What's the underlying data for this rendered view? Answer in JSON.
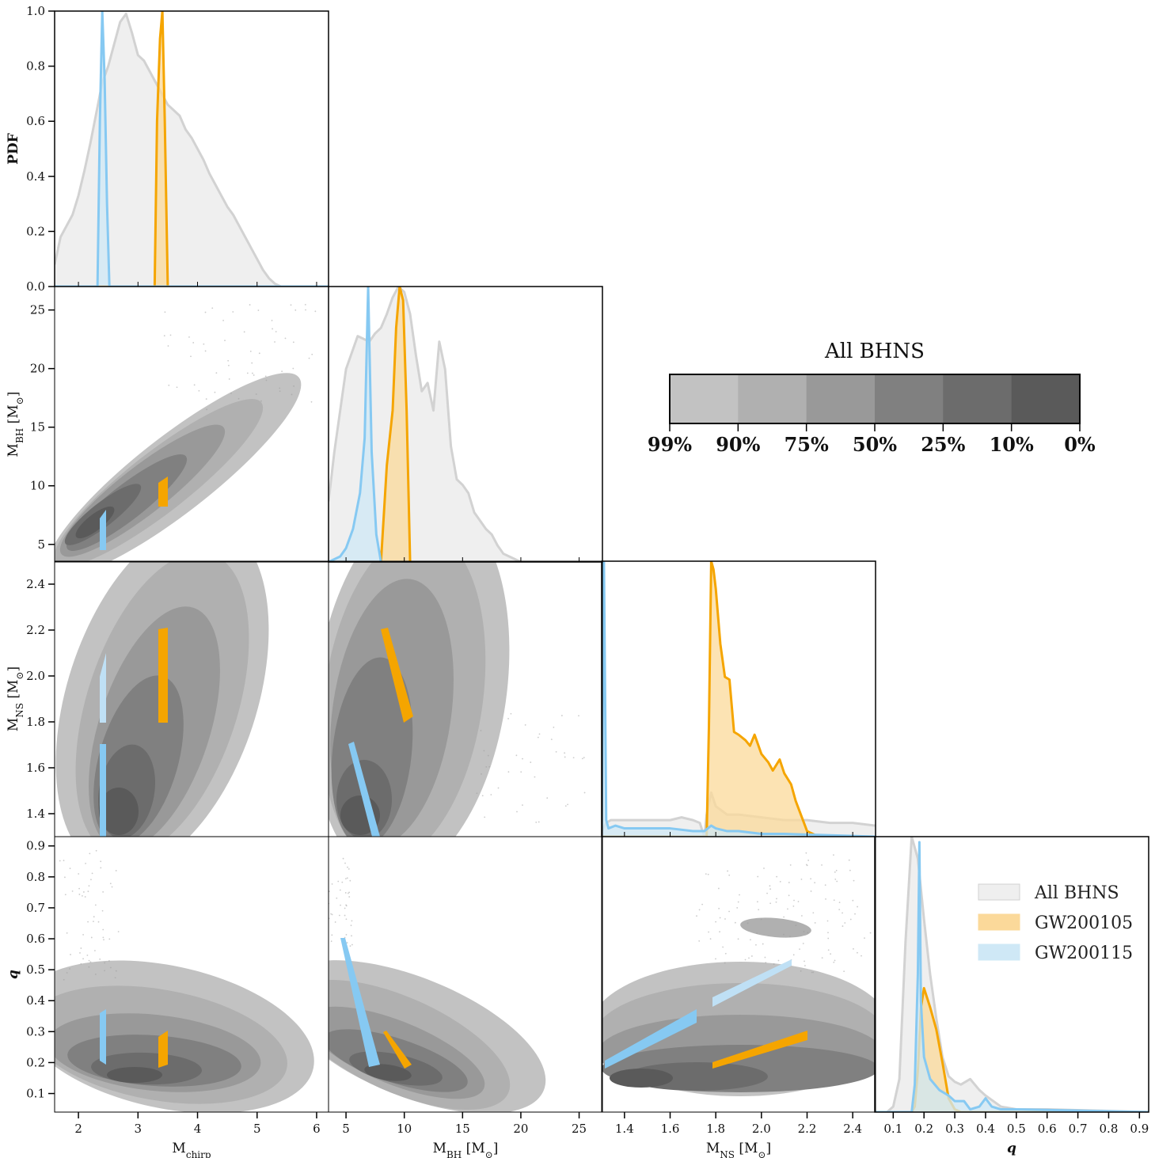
{
  "figure": {
    "colors": {
      "all": "#d2d2d2",
      "all_fill": "#efefef",
      "gw200105": "#f5a500",
      "gw200105_fill": "#fbd99a",
      "gw200115": "#86c9f2",
      "gw200115_fill": "#cfe8f6",
      "levels": [
        "#c2c2c2",
        "#b0b0b0",
        "#999999",
        "#808080",
        "#6c6c6c",
        "#5a5a5a"
      ]
    }
  },
  "colorbar": {
    "title": "All BHNS",
    "labels": [
      "99%",
      "90%",
      "75%",
      "50%",
      "25%",
      "10%",
      "0%"
    ]
  },
  "legend": {
    "items": [
      {
        "label": "All BHNS",
        "key": "all"
      },
      {
        "label": "GW200105",
        "key": "gw200105"
      },
      {
        "label": "GW200115",
        "key": "gw200115"
      }
    ]
  },
  "chart_data": {
    "type": "area",
    "title": "",
    "variables": [
      {
        "label": "M_chirp",
        "xlabel": "M",
        "xsub": "chirp",
        "range": [
          1.6,
          6.2
        ],
        "ticks": [
          2,
          3,
          4,
          5,
          6
        ],
        "tick_labels": [
          "2",
          "3",
          "4",
          "5",
          "6"
        ]
      },
      {
        "label": "M_BH [M_sun]",
        "xlabel": "M",
        "xsub": "BH",
        "unit": " [M",
        "range": [
          3.5,
          27
        ],
        "ticks": [
          5,
          10,
          15,
          20,
          25
        ],
        "tick_labels": [
          "5",
          "10",
          "15",
          "20",
          "25"
        ]
      },
      {
        "label": "M_NS [M_sun]",
        "xlabel": "M",
        "xsub": "NS",
        "unit": " [M",
        "range": [
          1.3,
          2.5
        ],
        "ticks": [
          1.4,
          1.6,
          1.8,
          2.0,
          2.2,
          2.4
        ],
        "tick_labels": [
          "1.4",
          "1.6",
          "1.8",
          "2.0",
          "2.2",
          "2.4"
        ]
      },
      {
        "label": "q",
        "xlabel": "q",
        "range": [
          0.04,
          0.93
        ],
        "ticks": [
          0.1,
          0.2,
          0.3,
          0.4,
          0.5,
          0.6,
          0.7,
          0.8,
          0.9
        ],
        "tick_labels": [
          "0.1",
          "0.2",
          "0.3",
          "0.4",
          "0.5",
          "0.6",
          "0.7",
          "0.8",
          "0.9"
        ]
      }
    ],
    "pdf_axis": {
      "label": "PDF",
      "range": [
        0,
        1
      ],
      "ticks": [
        0,
        0.2,
        0.4,
        0.6,
        0.8,
        1.0
      ],
      "tick_labels": [
        "0.0",
        "0.2",
        "0.4",
        "0.6",
        "0.8",
        "1.0"
      ]
    },
    "diagonal": [
      {
        "series": [
          {
            "name": "All BHNS",
            "x": [
              1.6,
              1.7,
              1.8,
              1.9,
              2.0,
              2.1,
              2.2,
              2.3,
              2.4,
              2.5,
              2.6,
              2.7,
              2.8,
              2.9,
              3.0,
              3.1,
              3.2,
              3.3,
              3.4,
              3.5,
              3.6,
              3.7,
              3.8,
              3.9,
              4.0,
              4.1,
              4.2,
              4.3,
              4.4,
              4.5,
              4.6,
              4.7,
              4.8,
              4.9,
              5.0,
              5.1,
              5.2,
              5.3,
              5.4,
              5.6,
              6.2
            ],
            "y": [
              0.08,
              0.18,
              0.22,
              0.26,
              0.33,
              0.42,
              0.52,
              0.63,
              0.74,
              0.8,
              0.88,
              0.96,
              0.99,
              0.92,
              0.84,
              0.82,
              0.78,
              0.74,
              0.7,
              0.66,
              0.64,
              0.62,
              0.57,
              0.54,
              0.5,
              0.46,
              0.41,
              0.37,
              0.33,
              0.29,
              0.26,
              0.22,
              0.18,
              0.14,
              0.1,
              0.06,
              0.03,
              0.01,
              0.0,
              0.0,
              0.0
            ]
          },
          {
            "name": "GW200105",
            "x": [
              1.6,
              3.28,
              3.32,
              3.37,
              3.41,
              3.45,
              3.5,
              6.2
            ],
            "y": [
              0,
              0,
              0.6,
              0.9,
              1.0,
              0.6,
              0,
              0
            ]
          },
          {
            "name": "GW200115",
            "x": [
              1.6,
              2.32,
              2.36,
              2.4,
              2.44,
              2.48,
              2.52,
              6.2
            ],
            "y": [
              0,
              0,
              0.6,
              1.0,
              0.75,
              0.3,
              0,
              0
            ]
          }
        ]
      },
      {
        "series": [
          {
            "name": "All BHNS",
            "x": [
              3.5,
              4,
              5,
              6,
              7,
              7.5,
              8,
              8.5,
              9,
              9.5,
              10,
              10.5,
              11,
              11.5,
              12,
              12.5,
              13,
              13.5,
              14,
              14.5,
              15,
              15.5,
              16,
              16.5,
              17,
              17.5,
              18,
              18.5,
              19,
              19.5,
              20,
              21,
              22,
              27
            ],
            "y": [
              0.22,
              0.4,
              0.7,
              0.82,
              0.8,
              0.83,
              0.85,
              0.9,
              0.96,
              1.0,
              0.98,
              0.9,
              0.75,
              0.62,
              0.65,
              0.55,
              0.8,
              0.7,
              0.42,
              0.3,
              0.28,
              0.25,
              0.18,
              0.15,
              0.12,
              0.1,
              0.06,
              0.03,
              0.02,
              0.01,
              0.0,
              0.0,
              0.0,
              0.0
            ]
          },
          {
            "name": "GW200105",
            "x": [
              3.5,
              8.0,
              8.5,
              9.0,
              9.3,
              9.6,
              9.9,
              10.2,
              10.5,
              27
            ],
            "y": [
              0,
              0,
              0.35,
              0.55,
              0.85,
              1.0,
              0.95,
              0.55,
              0,
              0
            ]
          },
          {
            "name": "GW200115",
            "x": [
              3.5,
              4.5,
              5.0,
              5.6,
              6.2,
              6.6,
              6.9,
              7.2,
              7.6,
              8.0,
              27
            ],
            "y": [
              0,
              0.02,
              0.05,
              0.12,
              0.25,
              0.45,
              1.0,
              0.4,
              0.1,
              0,
              0
            ]
          }
        ]
      },
      {
        "series": [
          {
            "name": "All BHNS",
            "x": [
              1.3,
              1.32,
              1.34,
              1.4,
              1.5,
              1.6,
              1.65,
              1.7,
              1.73,
              1.75,
              1.76,
              1.78,
              1.8,
              1.85,
              1.9,
              2.0,
              2.1,
              2.2,
              2.3,
              2.4,
              2.5
            ],
            "y": [
              0.02,
              0.05,
              0.06,
              0.06,
              0.06,
              0.06,
              0.07,
              0.06,
              0.05,
              0.0,
              0.08,
              0.16,
              0.11,
              0.08,
              0.08,
              0.07,
              0.06,
              0.06,
              0.05,
              0.05,
              0.04
            ]
          },
          {
            "name": "GW200105",
            "x": [
              1.3,
              1.75,
              1.76,
              1.77,
              1.78,
              1.79,
              1.8,
              1.82,
              1.84,
              1.86,
              1.88,
              1.9,
              1.93,
              1.95,
              1.97,
              2.0,
              2.03,
              2.05,
              2.08,
              2.1,
              2.13,
              2.15,
              2.2,
              2.25,
              2.5
            ],
            "y": [
              0,
              0,
              0.0,
              0.4,
              1.0,
              0.97,
              0.9,
              0.7,
              0.58,
              0.57,
              0.38,
              0.37,
              0.35,
              0.33,
              0.37,
              0.3,
              0.27,
              0.24,
              0.28,
              0.23,
              0.19,
              0.13,
              0.02,
              0.0,
              0
            ]
          },
          {
            "name": "GW200115",
            "x": [
              1.3,
              1.31,
              1.32,
              1.33,
              1.36,
              1.4,
              1.5,
              1.6,
              1.7,
              1.75,
              1.78,
              1.8,
              1.85,
              1.9,
              2.0,
              2.1,
              2.5
            ],
            "y": [
              0.0,
              1.0,
              0.06,
              0.03,
              0.04,
              0.03,
              0.03,
              0.03,
              0.02,
              0.02,
              0.04,
              0.03,
              0.02,
              0.02,
              0.01,
              0.01,
              0.0
            ]
          }
        ]
      },
      {
        "series": [
          {
            "name": "All BHNS",
            "x": [
              0.04,
              0.08,
              0.1,
              0.12,
              0.14,
              0.16,
              0.18,
              0.2,
              0.22,
              0.24,
              0.26,
              0.28,
              0.3,
              0.32,
              0.35,
              0.38,
              0.4,
              0.45,
              0.5,
              0.6,
              0.93
            ],
            "y": [
              0.0,
              0.0,
              0.02,
              0.12,
              0.62,
              1.0,
              0.92,
              0.7,
              0.5,
              0.34,
              0.2,
              0.13,
              0.11,
              0.1,
              0.12,
              0.08,
              0.06,
              0.02,
              0.01,
              0.01,
              0.0
            ]
          },
          {
            "name": "GW200105",
            "x": [
              0.04,
              0.16,
              0.17,
              0.18,
              0.19,
              0.2,
              0.22,
              0.24,
              0.26,
              0.28,
              0.3,
              0.32,
              0.93
            ],
            "y": [
              0,
              0,
              0.02,
              0.15,
              0.38,
              0.45,
              0.38,
              0.3,
              0.18,
              0.05,
              0.01,
              0,
              0
            ]
          },
          {
            "name": "GW200115",
            "x": [
              0.04,
              0.16,
              0.17,
              0.18,
              0.185,
              0.19,
              0.2,
              0.22,
              0.25,
              0.28,
              0.3,
              0.33,
              0.35,
              0.38,
              0.4,
              0.42,
              0.45,
              0.5,
              0.93
            ],
            "y": [
              0,
              0,
              0.1,
              0.5,
              0.98,
              0.4,
              0.2,
              0.12,
              0.08,
              0.06,
              0.04,
              0.04,
              0.01,
              0.02,
              0.05,
              0.02,
              0.01,
              0.01,
              0.0
            ]
          }
        ]
      }
    ],
    "contour_levels": [
      "99%",
      "90%",
      "75%",
      "50%",
      "25%",
      "10%",
      "0%"
    ],
    "events": [
      {
        "name": "GW200105",
        "M_chirp": [
          3.38,
          3.45
        ],
        "M_BH": [
          7.4,
          10.0
        ],
        "M_NS": [
          1.78,
          2.2
        ],
        "q": [
          0.17,
          0.3
        ]
      },
      {
        "name": "GW200115",
        "M_chirp": [
          2.38,
          2.44
        ],
        "M_BH": [
          3.8,
          7.3
        ],
        "M_NS": [
          1.3,
          2.2
        ],
        "q": [
          0.15,
          0.59
        ]
      }
    ]
  }
}
